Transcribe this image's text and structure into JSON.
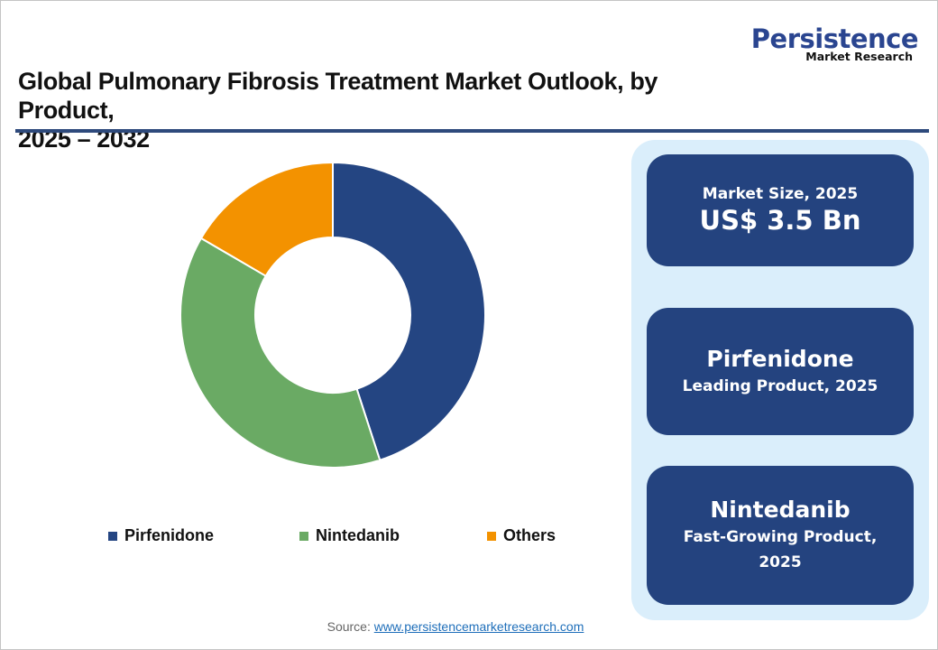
{
  "brand": {
    "name": "Persistence",
    "tagline": "Market Research",
    "color": "#2a4590"
  },
  "title": {
    "line1": "Global Pulmonary Fibrosis Treatment Market Outlook, by Product,",
    "line2": "2025 – 2032"
  },
  "chart_data": {
    "type": "pie",
    "subtype": "donut",
    "title": "Global Pulmonary Fibrosis Treatment Market Outlook, by Product, 2025 – 2032",
    "categories": [
      "Pirfenidone",
      "Nintedanib",
      "Others"
    ],
    "values": [
      45,
      38.4,
      16.6
    ],
    "unit": "% share (estimated from slice angles)",
    "colors": [
      "#244582",
      "#6aaa64",
      "#f39200"
    ],
    "start_angle_deg": 0,
    "direction": "clockwise",
    "inner_radius_ratio": 0.5,
    "legend_position": "bottom",
    "data_labels": false
  },
  "legend": [
    {
      "label": "Pirfenidone",
      "color": "#244582"
    },
    {
      "label": "Nintedanib",
      "color": "#6aaa64"
    },
    {
      "label": "Others",
      "color": "#f39200"
    }
  ],
  "cards": {
    "market_size": {
      "label": "Market Size, 2025",
      "value": "US$ 3.5 Bn"
    },
    "leading": {
      "title": "Pirfenidone",
      "subtitle": "Leading Product, 2025"
    },
    "fast_growing": {
      "title": "Nintedanib",
      "subtitle_line1": "Fast-Growing Product,",
      "subtitle_line2": "2025"
    }
  },
  "source": {
    "label": "Source:",
    "link_text": "www.persistencemarketresearch.com"
  }
}
